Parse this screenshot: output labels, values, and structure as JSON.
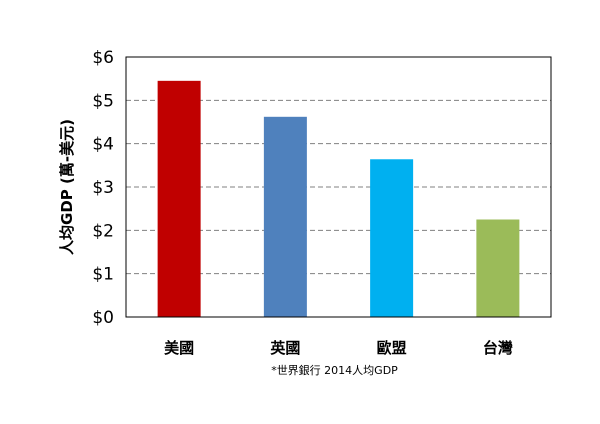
{
  "chart_data": {
    "type": "bar",
    "categories": [
      "美國",
      "英國",
      "歐盟",
      "台灣"
    ],
    "values": [
      5.45,
      4.62,
      3.64,
      2.25
    ],
    "colors": [
      "#c00000",
      "#4f81bd",
      "#00b0f0",
      "#9bbb59"
    ],
    "ylabel": "人均GDP (萬-美元)",
    "yticks": [
      "$0",
      "$1",
      "$2",
      "$3",
      "$4",
      "$5",
      "$6"
    ],
    "ylim": [
      0,
      6
    ],
    "grid": true,
    "gridStyle": "dashed",
    "note": "*世界銀行 2014人均GDP"
  }
}
